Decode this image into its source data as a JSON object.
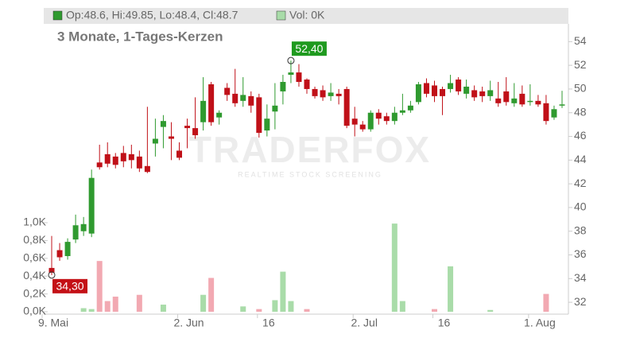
{
  "chart_data": {
    "type": "candlestick",
    "header": "Op:48.6, Hi:49.85, Lo:48.4, Cl:48.7",
    "volume_header": "Vol: 0K",
    "subtitle": "3 Monate, 1-Tages-Kerzen",
    "watermark": "TRADERFOX",
    "watermark_sub": "REALTIME STOCK SCREENING",
    "categories": [
      "9. Mai",
      null,
      null,
      null,
      null,
      null,
      null,
      null,
      null,
      null,
      null,
      null,
      null,
      null,
      null,
      null,
      null,
      "2. Jun",
      null,
      null,
      null,
      null,
      null,
      null,
      null,
      null,
      null,
      "16",
      null,
      null,
      null,
      null,
      null,
      null,
      null,
      null,
      null,
      null,
      null,
      "2. Jul",
      null,
      null,
      null,
      null,
      null,
      null,
      null,
      null,
      null,
      "16",
      null,
      null,
      null,
      null,
      null,
      null,
      null,
      null,
      null,
      null,
      null,
      "1. Aug",
      null,
      null,
      null
    ],
    "open": [
      34.9,
      36.4,
      35.9,
      37.3,
      38.0,
      37.8,
      43.8,
      44.5,
      44.3,
      44.6,
      44.5,
      44.3,
      43.5,
      45.4,
      46.8,
      46.0,
      44.8,
      46.9,
      46.7,
      47.2,
      50.4,
      47.6,
      50.1,
      49.6,
      49.0,
      49.4,
      49.3,
      46.5,
      48.1,
      49.8,
      51.2,
      51.4,
      50.8,
      50.0,
      49.9,
      49.4,
      49.6,
      50.0,
      47.5,
      47.0,
      46.6,
      48.0,
      47.7,
      47.3,
      48.0,
      48.2,
      48.9,
      50.5,
      50.3,
      50.0,
      50.0,
      50.8,
      49.6,
      49.9,
      49.8,
      49.4,
      49.2,
      49.8,
      48.8,
      49.6,
      48.9,
      49.0,
      48.8,
      47.6,
      48.6
    ],
    "high": [
      37.6,
      37.0,
      37.4,
      39.4,
      39.2,
      43.2,
      45.3,
      45.5,
      44.6,
      45.2,
      45.3,
      44.8,
      48.5,
      47.5,
      47.8,
      47.2,
      45.5,
      47.5,
      49.3,
      51.0,
      50.6,
      48.2,
      50.5,
      51.7,
      51.0,
      49.8,
      49.6,
      48.7,
      50.5,
      51.2,
      52.4,
      52.1,
      50.9,
      50.2,
      50.3,
      50.5,
      50.0,
      50.2,
      48.5,
      47.3,
      48.2,
      48.3,
      48.0,
      48.5,
      49.6,
      49.0,
      50.6,
      50.9,
      50.7,
      50.2,
      51.2,
      51.0,
      50.8,
      50.3,
      50.2,
      50.7,
      50.6,
      51.0,
      50.5,
      50.3,
      50.4,
      49.5,
      49.5,
      48.6,
      49.85
    ],
    "low": [
      34.3,
      35.5,
      35.6,
      37.0,
      37.6,
      37.5,
      43.2,
      43.4,
      43.3,
      43.4,
      43.3,
      43.0,
      42.9,
      44.3,
      45.0,
      44.0,
      44.0,
      45.0,
      45.8,
      46.5,
      46.9,
      47.0,
      49.0,
      48.5,
      48.5,
      48.0,
      45.9,
      46.0,
      46.6,
      48.7,
      50.5,
      50.2,
      49.6,
      49.2,
      49.0,
      49.0,
      48.7,
      46.7,
      46.0,
      46.4,
      46.4,
      47.0,
      47.0,
      47.0,
      47.8,
      48.0,
      48.7,
      49.3,
      48.9,
      47.8,
      49.7,
      49.5,
      49.2,
      49.0,
      48.9,
      49.0,
      48.5,
      48.6,
      48.5,
      48.5,
      48.6,
      48.5,
      47.0,
      47.4,
      48.4
    ],
    "close": [
      34.5,
      35.8,
      37.1,
      38.5,
      38.6,
      42.5,
      43.4,
      43.7,
      43.6,
      43.9,
      44.0,
      43.3,
      43.0,
      45.8,
      47.3,
      45.8,
      44.2,
      46.7,
      46.1,
      49.0,
      47.2,
      48.0,
      49.5,
      48.8,
      49.5,
      48.6,
      46.3,
      47.5,
      48.6,
      50.6,
      51.4,
      50.6,
      50.0,
      49.4,
      49.3,
      49.7,
      49.4,
      46.9,
      47.0,
      46.6,
      48.0,
      47.5,
      47.3,
      48.0,
      48.2,
      48.6,
      50.4,
      49.6,
      49.4,
      49.4,
      50.5,
      49.8,
      50.2,
      49.3,
      49.4,
      49.9,
      48.8,
      48.9,
      49.2,
      48.7,
      49.0,
      48.7,
      47.3,
      48.3,
      48.7
    ],
    "volume": [
      0,
      0,
      0,
      0,
      0.04,
      0.03,
      0.57,
      0.12,
      0.17,
      0,
      0,
      0.19,
      0,
      0,
      0.08,
      0,
      0,
      0,
      0,
      0.19,
      0.38,
      0,
      0,
      0,
      0.06,
      0,
      0.03,
      0,
      0.13,
      0.45,
      0.12,
      0,
      0.03,
      0,
      0,
      0,
      0,
      0,
      0,
      0,
      0,
      0,
      0,
      0.99,
      0.12,
      0,
      0,
      0,
      0.03,
      0,
      0.51,
      0,
      0,
      0,
      0,
      0.02,
      0,
      0,
      0,
      0,
      0,
      0,
      0.2,
      0,
      0
    ],
    "up_color": "#2f9a2f",
    "down_color": "#c01018",
    "volume_up_color": "#a9dca9",
    "volume_down_color": "#f2a9b2",
    "ylim": [
      31,
      55.5
    ],
    "yticks": [
      32,
      34,
      36,
      38,
      40,
      42,
      44,
      46,
      48,
      50,
      52,
      54
    ],
    "y2lim": [
      0,
      1.0
    ],
    "y2ticks": [
      {
        "value": 0,
        "label": "0,0K"
      },
      {
        "value": 0.2,
        "label": "0,2K"
      },
      {
        "value": 0.4,
        "label": "0,4K"
      },
      {
        "value": 0.6,
        "label": "0,6K"
      },
      {
        "value": 0.8,
        "label": "0,8K"
      },
      {
        "value": 1.0,
        "label": "1,0K"
      }
    ],
    "annotations": [
      {
        "label": "52,40",
        "value": 52.4,
        "at": "high"
      },
      {
        "label": "34,30",
        "value": 34.3,
        "at": "low"
      }
    ]
  }
}
